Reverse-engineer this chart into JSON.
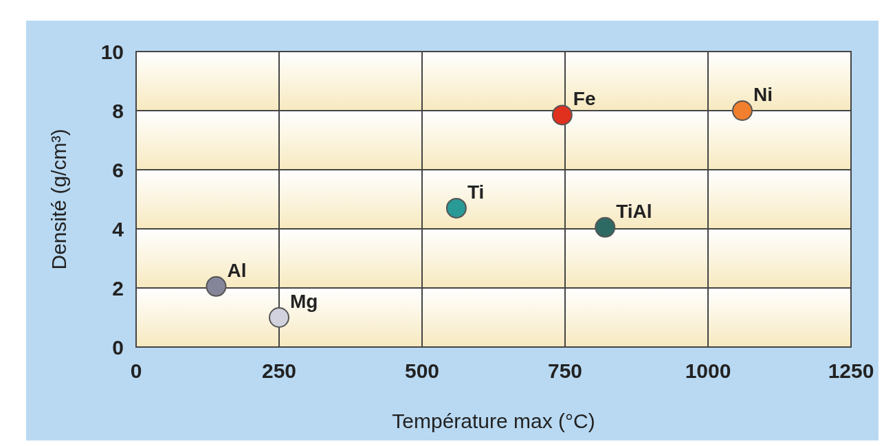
{
  "chart_data": {
    "type": "scatter",
    "xlabel": "Température max (°C)",
    "ylabel": "Densité (g/cm³)",
    "xlim": [
      0,
      1250
    ],
    "xticks": [
      0,
      250,
      500,
      750,
      1000,
      1250
    ],
    "ylim": [
      0,
      10
    ],
    "yticks": [
      0,
      2,
      4,
      6,
      8,
      10
    ],
    "grid": true,
    "marker": "circle",
    "series": [
      {
        "name": "Al",
        "color": "#85859a",
        "x": [
          140
        ],
        "values": [
          2.05
        ]
      },
      {
        "name": "Mg",
        "color": "#d2d2de",
        "x": [
          250
        ],
        "values": [
          1.0
        ]
      },
      {
        "name": "Ti",
        "color": "#2a9a96",
        "x": [
          560
        ],
        "values": [
          4.7
        ]
      },
      {
        "name": "Fe",
        "color": "#e0301e",
        "x": [
          745
        ],
        "values": [
          7.85
        ]
      },
      {
        "name": "Ni",
        "color": "#f07f2e",
        "x": [
          1060
        ],
        "values": [
          8.0
        ]
      },
      {
        "name": "TiAl",
        "color": "#2e6a64",
        "x": [
          820
        ],
        "values": [
          4.05
        ]
      }
    ]
  }
}
